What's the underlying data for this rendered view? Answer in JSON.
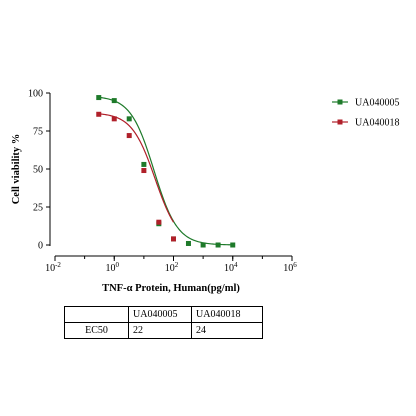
{
  "chart_data": {
    "type": "scatter",
    "ylabel": "Cell viability %",
    "xlabel": "TNF-α Protein, Human(pg/ml)",
    "xscale": "log",
    "xlim": [
      0.01,
      1000000
    ],
    "ylim": [
      0,
      100
    ],
    "yticks": [
      "0",
      "25",
      "50",
      "75",
      "100"
    ],
    "xticks": [
      {
        "base": "10",
        "exp": "-2"
      },
      {
        "base": "10",
        "exp": "0"
      },
      {
        "base": "10",
        "exp": "2"
      },
      {
        "base": "10",
        "exp": "4"
      },
      {
        "base": "10",
        "exp": "6"
      }
    ],
    "legend_position": "top-right",
    "series": [
      {
        "name": "UA040005",
        "color": "#1e7a2a",
        "marker": "square",
        "ec50": 22,
        "x": [
          0.3,
          1.0,
          3.2,
          10,
          32,
          100,
          320,
          1000,
          3200,
          10000
        ],
        "y": [
          97,
          95,
          83,
          53,
          14,
          4,
          1,
          0,
          0,
          0
        ]
      },
      {
        "name": "UA040018",
        "color": "#b0202a",
        "marker": "square",
        "ec50": 24,
        "x": [
          0.3,
          1.0,
          3.2,
          10,
          32,
          100
        ],
        "y": [
          86,
          83,
          72,
          49,
          15,
          4
        ]
      }
    ]
  },
  "ec50_table": {
    "header": [
      "",
      "UA040005",
      "UA040018"
    ],
    "rows": [
      [
        "EC50",
        "22",
        "24"
      ]
    ]
  }
}
